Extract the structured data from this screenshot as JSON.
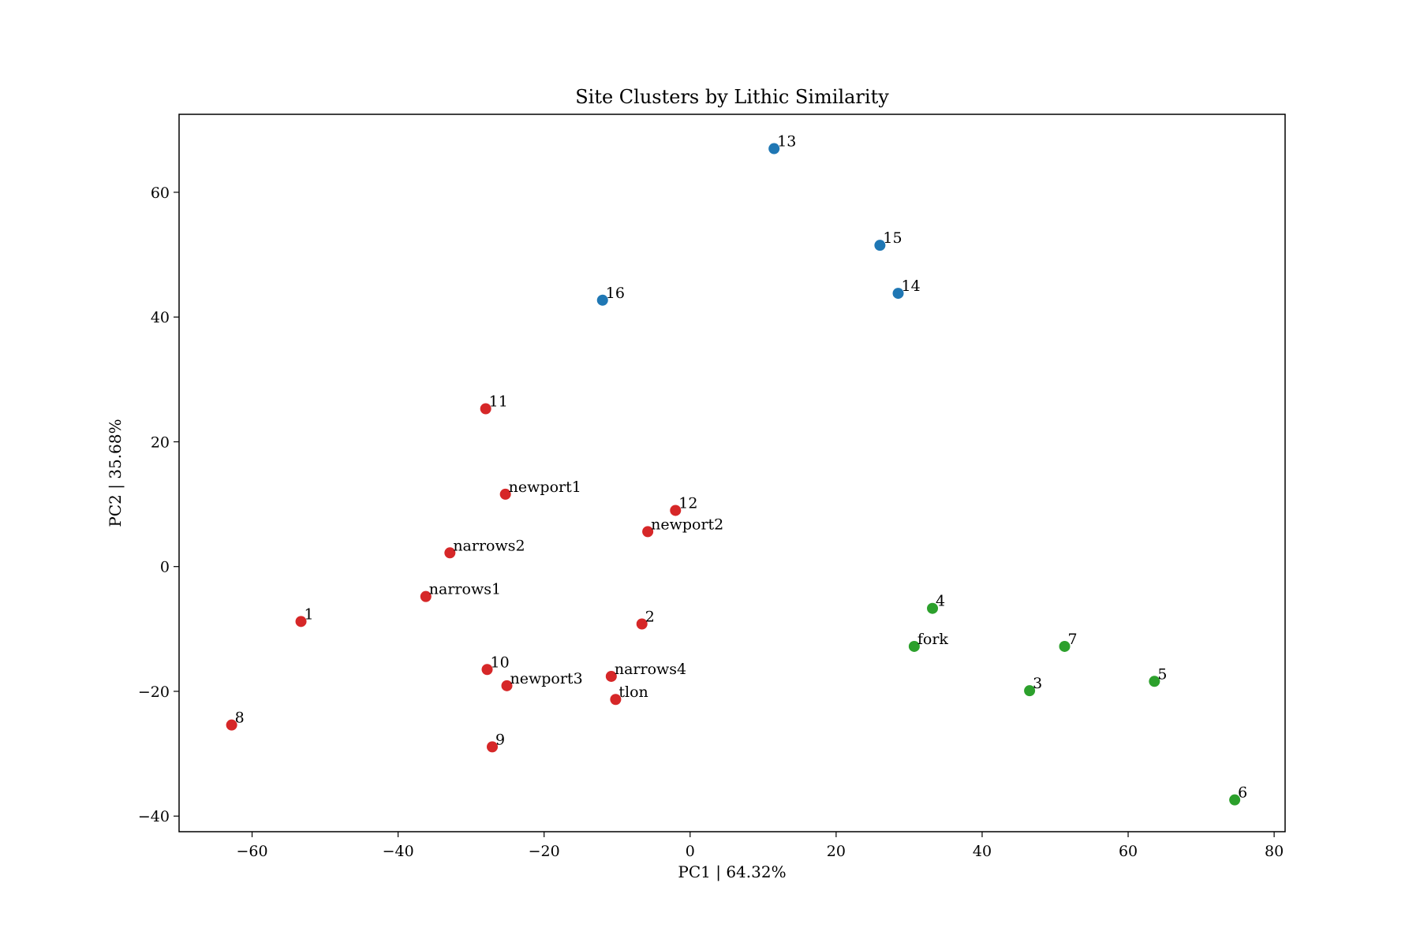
{
  "chart_data": {
    "type": "scatter",
    "title": "Site Clusters by Lithic Similarity",
    "xlabel": "PC1 | 64.32%",
    "ylabel": "PC2 | 35.68%",
    "xlim": [
      -70,
      81.5
    ],
    "ylim": [
      -42.5,
      72.5
    ],
    "xticks": [
      -60,
      -40,
      -20,
      0,
      20,
      40,
      60,
      80
    ],
    "yticks": [
      -40,
      -20,
      0,
      20,
      40,
      60
    ],
    "xtick_labels": [
      "−60",
      "−40",
      "−20",
      "0",
      "20",
      "40",
      "60",
      "80"
    ],
    "ytick_labels": [
      "−40",
      "−20",
      "0",
      "20",
      "40",
      "60"
    ],
    "grid": false,
    "legend": "none",
    "colors": {
      "blue": "#1f77b4",
      "red": "#d62728",
      "green": "#2ca02c"
    },
    "points": [
      {
        "label": "13",
        "x": 11.5,
        "y": 67.0,
        "color": "#1f77b4"
      },
      {
        "label": "15",
        "x": 26.0,
        "y": 51.5,
        "color": "#1f77b4"
      },
      {
        "label": "14",
        "x": 28.5,
        "y": 43.8,
        "color": "#1f77b4"
      },
      {
        "label": "16",
        "x": -12.0,
        "y": 42.7,
        "color": "#1f77b4"
      },
      {
        "label": "11",
        "x": -28.0,
        "y": 25.3,
        "color": "#d62728"
      },
      {
        "label": "newport1",
        "x": -25.3,
        "y": 11.6,
        "color": "#d62728"
      },
      {
        "label": "12",
        "x": -2.0,
        "y": 9.0,
        "color": "#d62728"
      },
      {
        "label": "newport2",
        "x": -5.8,
        "y": 5.6,
        "color": "#d62728"
      },
      {
        "label": "narrows2",
        "x": -32.9,
        "y": 2.2,
        "color": "#d62728"
      },
      {
        "label": "narrows1",
        "x": -36.2,
        "y": -4.8,
        "color": "#d62728"
      },
      {
        "label": "1",
        "x": -53.3,
        "y": -8.8,
        "color": "#d62728"
      },
      {
        "label": "2",
        "x": -6.6,
        "y": -9.2,
        "color": "#d62728"
      },
      {
        "label": "10",
        "x": -27.8,
        "y": -16.5,
        "color": "#d62728"
      },
      {
        "label": "newport3",
        "x": -25.1,
        "y": -19.1,
        "color": "#d62728"
      },
      {
        "label": "narrows4",
        "x": -10.8,
        "y": -17.6,
        "color": "#d62728"
      },
      {
        "label": "tlon",
        "x": -10.2,
        "y": -21.3,
        "color": "#d62728"
      },
      {
        "label": "8",
        "x": -62.8,
        "y": -25.4,
        "color": "#d62728"
      },
      {
        "label": "9",
        "x": -27.1,
        "y": -28.9,
        "color": "#d62728"
      },
      {
        "label": "4",
        "x": 33.2,
        "y": -6.7,
        "color": "#2ca02c"
      },
      {
        "label": "fork",
        "x": 30.7,
        "y": -12.8,
        "color": "#2ca02c"
      },
      {
        "label": "7",
        "x": 51.3,
        "y": -12.8,
        "color": "#2ca02c"
      },
      {
        "label": "5",
        "x": 63.6,
        "y": -18.4,
        "color": "#2ca02c"
      },
      {
        "label": "3",
        "x": 46.5,
        "y": -19.9,
        "color": "#2ca02c"
      },
      {
        "label": "6",
        "x": 74.6,
        "y": -37.4,
        "color": "#2ca02c"
      }
    ]
  }
}
